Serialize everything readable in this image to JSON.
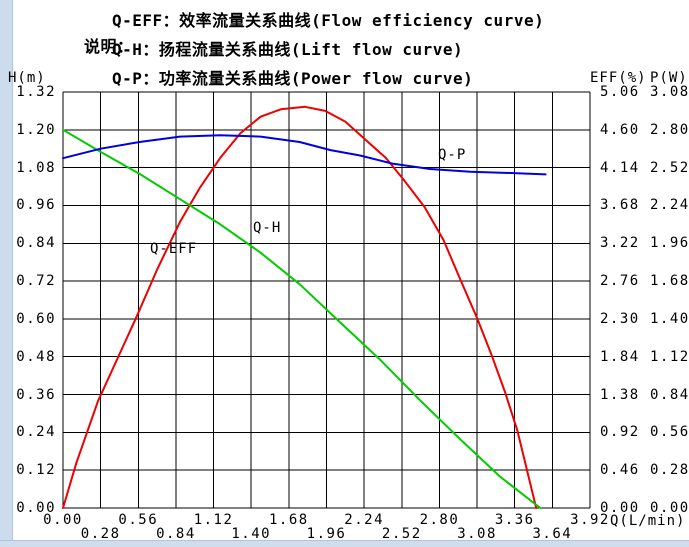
{
  "frame": {
    "color": "#ccdcec"
  },
  "legend": {
    "prefix": "说明：",
    "lines": [
      "Q-EFF：效率流量关系曲线(Flow efficiency curve)",
      "Q-H：扬程流量关系曲线(Lift flow curve)",
      "Q-P：功率流量关系曲线(Power flow curve)"
    ]
  },
  "chart_data": {
    "type": "line",
    "grid": "on",
    "x_axis": {
      "label": "Q(L/min)",
      "min": 0,
      "max": 3.92,
      "ticks": [
        "0.00",
        "0.28",
        "0.56",
        "0.84",
        "1.12",
        "1.40",
        "1.68",
        "1.96",
        "2.24",
        "2.52",
        "2.80",
        "3.08",
        "3.36",
        "3.64",
        "3.92"
      ]
    },
    "left_axis": {
      "label": "H(m)",
      "min": 0,
      "max": 1.32,
      "ticks": [
        "1.32",
        "1.20",
        "1.08",
        "0.96",
        "0.84",
        "0.72",
        "0.60",
        "0.48",
        "0.36",
        "0.24",
        "0.12",
        "0.00"
      ]
    },
    "right_axis_eff": {
      "label": "EFF(%)",
      "min": 0,
      "max": 5.06,
      "ticks": [
        "5.06",
        "4.60",
        "4.14",
        "3.68",
        "3.22",
        "2.76",
        "2.30",
        "1.84",
        "1.38",
        "0.92",
        "0.46",
        "0.00"
      ]
    },
    "right_axis_p": {
      "label": "P(W)",
      "min": 0,
      "max": 3.08,
      "ticks": [
        "3.08",
        "2.80",
        "2.52",
        "2.24",
        "1.96",
        "1.68",
        "1.40",
        "1.12",
        "0.84",
        "0.56",
        "0.28",
        "0.00"
      ]
    },
    "grid_color": "#000000",
    "series": [
      {
        "name": "Q-EFF",
        "axis": "eff",
        "color": "#ee0000",
        "points": [
          [
            0,
            0
          ],
          [
            0.1,
            0.55
          ],
          [
            0.26,
            1.3
          ],
          [
            0.4,
            1.8
          ],
          [
            0.54,
            2.3
          ],
          [
            0.7,
            2.9
          ],
          [
            0.87,
            3.48
          ],
          [
            1.02,
            3.9
          ],
          [
            1.17,
            4.26
          ],
          [
            1.32,
            4.56
          ],
          [
            1.47,
            4.76
          ],
          [
            1.62,
            4.85
          ],
          [
            1.8,
            4.88
          ],
          [
            1.95,
            4.83
          ],
          [
            2.1,
            4.7
          ],
          [
            2.25,
            4.48
          ],
          [
            2.4,
            4.26
          ],
          [
            2.54,
            3.98
          ],
          [
            2.69,
            3.66
          ],
          [
            2.83,
            3.26
          ],
          [
            2.95,
            2.8
          ],
          [
            3.08,
            2.31
          ],
          [
            3.19,
            1.85
          ],
          [
            3.29,
            1.4
          ],
          [
            3.38,
            0.94
          ],
          [
            3.45,
            0.47
          ],
          [
            3.52,
            0
          ]
        ]
      },
      {
        "name": "Q-H",
        "axis": "h",
        "color": "#00cc00",
        "points": [
          [
            0,
            1.2
          ],
          [
            0.28,
            1.13
          ],
          [
            0.57,
            1.06
          ],
          [
            0.87,
            0.98
          ],
          [
            1.17,
            0.9
          ],
          [
            1.47,
            0.81
          ],
          [
            1.76,
            0.71
          ],
          [
            2.06,
            0.59
          ],
          [
            2.36,
            0.47
          ],
          [
            2.66,
            0.34
          ],
          [
            2.95,
            0.22
          ],
          [
            3.25,
            0.1
          ],
          [
            3.55,
            0
          ]
        ]
      },
      {
        "name": "Q-P",
        "axis": "p",
        "color": "#0000e0",
        "points": [
          [
            0,
            2.59
          ],
          [
            0.28,
            2.66
          ],
          [
            0.57,
            2.71
          ],
          [
            0.87,
            2.75
          ],
          [
            1.17,
            2.76
          ],
          [
            1.47,
            2.75
          ],
          [
            1.76,
            2.71
          ],
          [
            1.99,
            2.65
          ],
          [
            2.21,
            2.61
          ],
          [
            2.45,
            2.55
          ],
          [
            2.73,
            2.51
          ],
          [
            3.03,
            2.49
          ],
          [
            3.33,
            2.48
          ],
          [
            3.59,
            2.47
          ]
        ]
      }
    ]
  }
}
